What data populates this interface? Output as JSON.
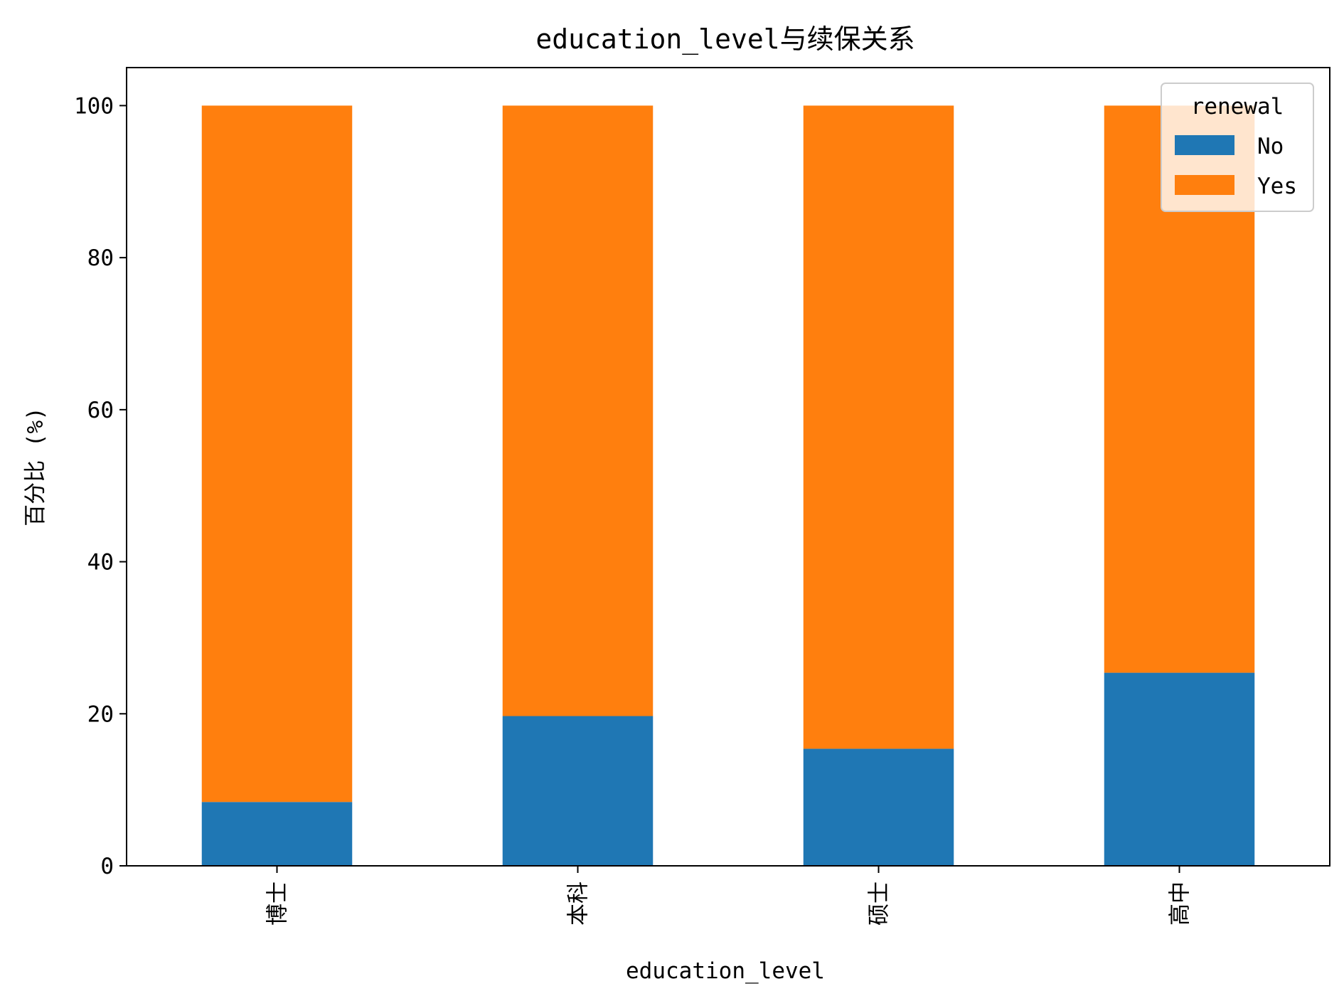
{
  "chart_data": {
    "type": "bar",
    "stacked": true,
    "title": "education_level与续保关系",
    "xlabel": "education_level",
    "ylabel": "百分比 (%)",
    "categories": [
      "博士",
      "本科",
      "硕士",
      "高中"
    ],
    "series": [
      {
        "name": "No",
        "color": "#1f77b4",
        "values": [
          8.4,
          19.7,
          15.4,
          25.4
        ]
      },
      {
        "name": "Yes",
        "color": "#ff7f0e",
        "values": [
          91.6,
          80.3,
          84.6,
          74.6
        ]
      }
    ],
    "ylim": [
      0,
      105
    ],
    "yticks": [
      0,
      20,
      40,
      60,
      80,
      100
    ],
    "grid": false,
    "legend": {
      "title": "renewal",
      "position": "top-right"
    }
  }
}
